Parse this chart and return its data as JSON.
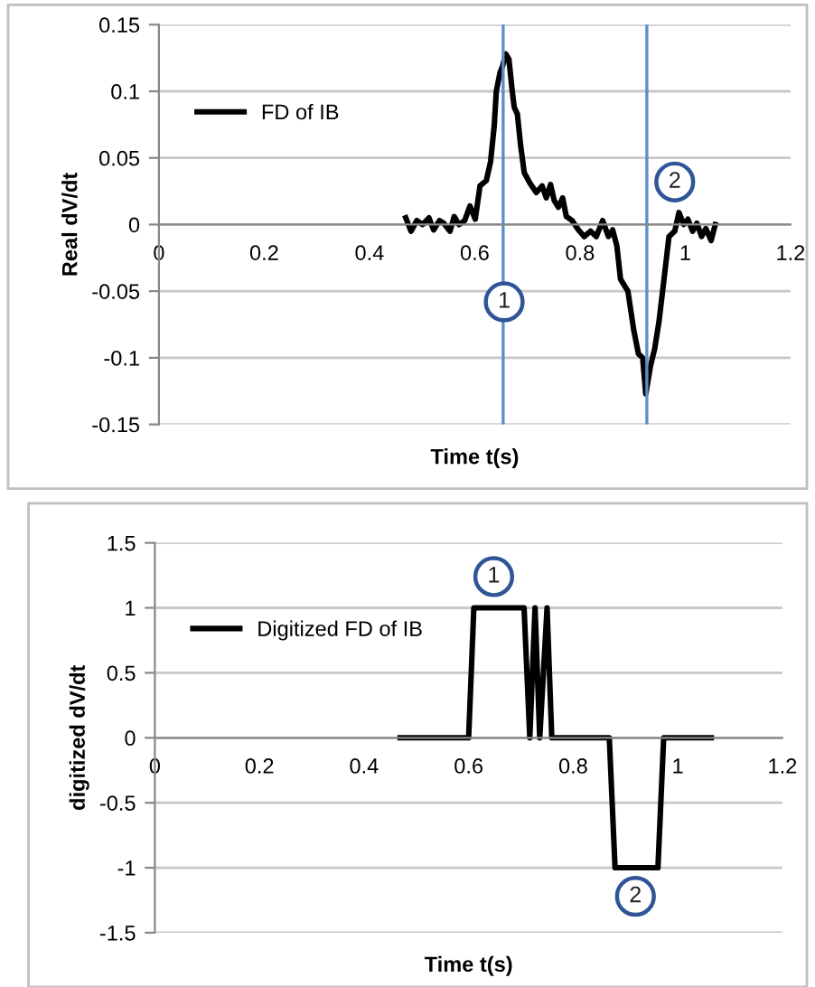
{
  "chart_data": [
    {
      "type": "line",
      "xlabel": "Time t(s)",
      "ylabel": "Real dV/dt",
      "xlim": [
        0,
        1.2
      ],
      "xticks": [
        0,
        0.2,
        0.4,
        0.6,
        0.8,
        1,
        1.2
      ],
      "ylim": [
        -0.15,
        0.15
      ],
      "yticks": [
        -0.15,
        -0.1,
        -0.05,
        0,
        0.05,
        0.1,
        0.15
      ],
      "grid": "y",
      "legend": "top left",
      "series": [
        {
          "name": "FD of IB",
          "color": "#000000",
          "x": [
            0.469,
            0.479,
            0.49,
            0.501,
            0.513,
            0.522,
            0.533,
            0.541,
            0.553,
            0.561,
            0.57,
            0.581,
            0.591,
            0.601,
            0.61,
            0.622,
            0.63,
            0.637,
            0.641,
            0.648,
            0.653,
            0.659,
            0.665,
            0.671,
            0.675,
            0.681,
            0.687,
            0.694,
            0.705,
            0.717,
            0.728,
            0.736,
            0.744,
            0.751,
            0.759,
            0.767,
            0.774,
            0.785,
            0.797,
            0.808,
            0.82,
            0.831,
            0.843,
            0.854,
            0.862,
            0.87,
            0.877,
            0.891,
            0.902,
            0.911,
            0.919,
            0.925,
            0.934,
            0.942,
            0.95,
            0.959,
            0.969,
            0.98,
            0.988,
            0.997,
            1.005,
            1.014,
            1.022,
            1.031,
            1.039,
            1.049,
            1.057
          ],
          "values": [
            0.005,
            -0.005,
            0.003,
            0,
            0.005,
            -0.004,
            0.003,
            0.001,
            -0.005,
            0.006,
            0,
            0.003,
            0.014,
            0.004,
            0.029,
            0.033,
            0.047,
            0.074,
            0.1,
            0.114,
            0.119,
            0.128,
            0.124,
            0.101,
            0.088,
            0.083,
            0.06,
            0.039,
            0.031,
            0.024,
            0.029,
            0.02,
            0.03,
            0.018,
            0.013,
            0.02,
            0.006,
            0.003,
            -0.004,
            -0.009,
            -0.005,
            -0.009,
            0.003,
            -0.009,
            -0.004,
            -0.016,
            -0.041,
            -0.05,
            -0.079,
            -0.097,
            -0.1,
            -0.127,
            -0.106,
            -0.093,
            -0.073,
            -0.043,
            -0.009,
            -0.005,
            0.009,
            0,
            0.004,
            -0.005,
            0.001,
            -0.009,
            -0.003,
            -0.012,
            0
          ]
        }
      ],
      "ref_lines": [
        {
          "axis": "x",
          "value": 0.654,
          "color": "#5b8fc7"
        },
        {
          "axis": "x",
          "value": 0.927,
          "color": "#5b8fc7"
        }
      ],
      "annotations": [
        {
          "text": "1",
          "x": 0.656,
          "y": -0.058
        },
        {
          "text": "2",
          "x": 0.98,
          "y": 0.032
        }
      ]
    },
    {
      "type": "line",
      "xlabel": "Time t(s)",
      "ylabel": "digitized dV/dt",
      "xlim": [
        0,
        1.2
      ],
      "xticks": [
        0,
        0.2,
        0.4,
        0.6,
        0.8,
        1,
        1.2
      ],
      "ylim": [
        -1.5,
        1.5
      ],
      "yticks": [
        -1.5,
        -1,
        -0.5,
        0,
        0.5,
        1,
        1.5
      ],
      "grid": "y",
      "legend": "top left",
      "series": [
        {
          "name": "Digitized FD of IB",
          "color": "#000000",
          "x": [
            0.469,
            0.6,
            0.61,
            0.706,
            0.717,
            0.727,
            0.736,
            0.75,
            0.759,
            0.869,
            0.88,
            0.962,
            0.973,
            1.064
          ],
          "values": [
            0,
            0,
            1,
            1,
            0,
            1,
            0,
            1,
            0,
            0,
            -1,
            -1,
            0,
            0
          ]
        }
      ],
      "annotations": [
        {
          "text": "1",
          "x": 0.648,
          "y": 1.24
        },
        {
          "text": "2",
          "x": 0.919,
          "y": -1.22
        }
      ]
    }
  ]
}
